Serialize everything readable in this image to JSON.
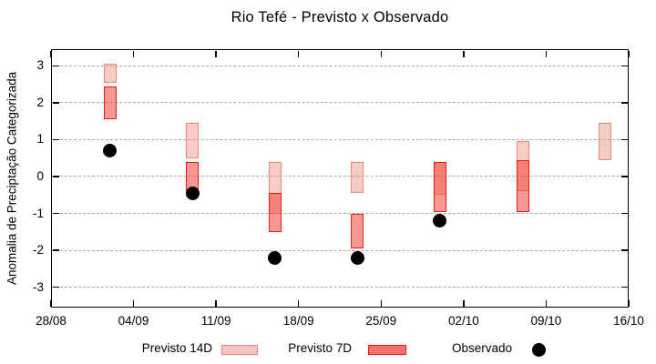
{
  "title": "Rio Tefé - Previsto x Observado",
  "ylabel": "Anomalia de Preciptação Categorizada",
  "legend": {
    "previsto14_label": "Previsto 14D",
    "previsto7_label": "Previsto 7D",
    "observado_label": "Observado"
  },
  "colors": {
    "bar14_fill": "rgba(240,120,105,0.38)",
    "bar14_border": "#ef8576",
    "bar7_fill": "rgba(240,65,55,0.55)",
    "bar7_border": "#e41e10",
    "observed": "#000000",
    "grid": "#a9a9a9",
    "frame": "#000000"
  },
  "chart_data": {
    "type": "bar",
    "subtype": "range-bars-with-scatter",
    "title": "Rio Tefé - Previsto x Observado",
    "xlabel": "",
    "ylabel": "Anomalia de Preciptação Categorizada",
    "ylim": [
      -3.55,
      3.45
    ],
    "yticks": [
      3,
      2,
      1,
      0,
      -1,
      -2,
      -3
    ],
    "xticklabels": [
      "28/08",
      "04/09",
      "11/09",
      "18/09",
      "25/09",
      "02/10",
      "09/10",
      "16/10"
    ],
    "x_total_days": 49,
    "grid": true,
    "legend_position": "below",
    "series_names": [
      "Previsto 14D",
      "Previsto 7D",
      "Observado"
    ],
    "groups": [
      {
        "date": "02/09",
        "day": 5,
        "previsto14": [
          2.55,
          3.05
        ],
        "previsto7": [
          1.55,
          2.45
        ],
        "observado": 0.7
      },
      {
        "date": "09/09",
        "day": 12,
        "previsto14": [
          0.5,
          1.45
        ],
        "previsto7": [
          -0.4,
          0.4
        ],
        "observado": -0.45
      },
      {
        "date": "16/09",
        "day": 19,
        "previsto14": [
          -1.0,
          0.4
        ],
        "previsto7": [
          -1.5,
          -0.45
        ],
        "observado": -2.2
      },
      {
        "date": "23/09",
        "day": 26,
        "previsto14": [
          -0.45,
          0.4
        ],
        "previsto7": [
          -1.95,
          -1.0
        ],
        "observado": -2.2
      },
      {
        "date": "30/09",
        "day": 33,
        "previsto14": [
          -0.5,
          0.4
        ],
        "previsto7": [
          -0.95,
          0.4
        ],
        "observado": -1.2
      },
      {
        "date": "07/10",
        "day": 40,
        "previsto14": [
          -0.4,
          0.95
        ],
        "previsto7": [
          -0.95,
          0.45
        ],
        "observado": null
      },
      {
        "date": "14/10",
        "day": 47,
        "previsto14": [
          0.45,
          1.45
        ],
        "previsto7": null,
        "observado": null
      }
    ]
  }
}
